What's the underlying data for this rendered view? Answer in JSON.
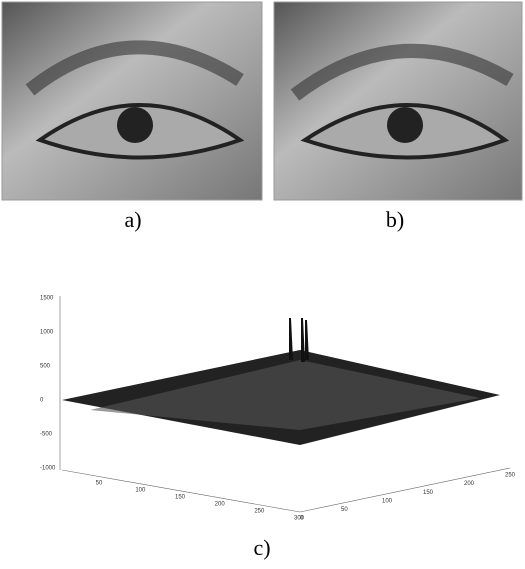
{
  "figure": {
    "panels": [
      {
        "label": "a)"
      },
      {
        "label": "b)"
      }
    ],
    "plot": {
      "label": "c)",
      "z_ticks": [
        1500,
        1000,
        500,
        0,
        -500,
        -1000
      ],
      "x_ticks": [
        50,
        100,
        150,
        200,
        250,
        300
      ],
      "y_ticks": [
        0,
        50,
        100,
        150,
        200,
        250
      ]
    }
  }
}
